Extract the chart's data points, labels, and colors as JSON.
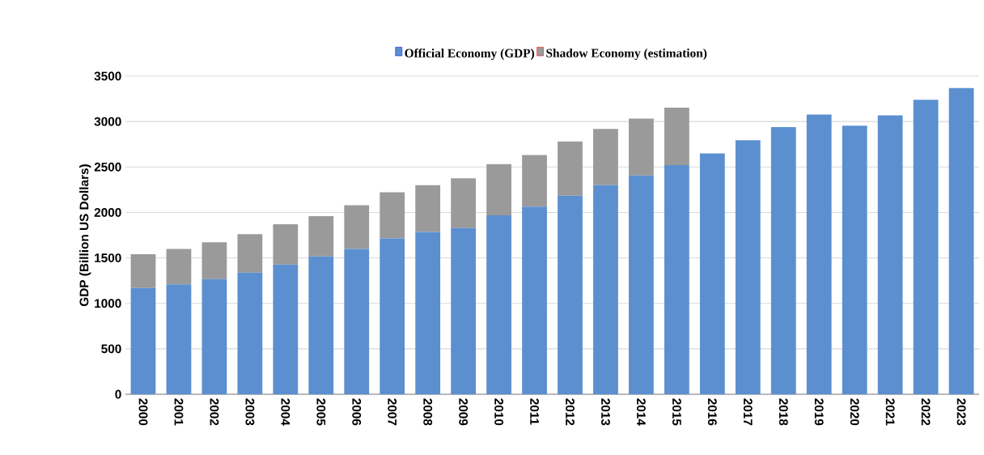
{
  "chart_data": {
    "type": "bar",
    "stacked": true,
    "ylabel": "GDP (Billion US Dollars)",
    "categories": [
      "2000",
      "2001",
      "2002",
      "2003",
      "2004",
      "2005",
      "2006",
      "2007",
      "2008",
      "2009",
      "2010",
      "2011",
      "2012",
      "2013",
      "2014",
      "2015",
      "2016",
      "2017",
      "2018",
      "2019",
      "2020",
      "2021",
      "2022",
      "2023"
    ],
    "series": [
      {
        "name": "Official Economy (GDP)",
        "color": "#5b8fd0",
        "values": [
          1170,
          1208,
          1267,
          1338,
          1427,
          1516,
          1599,
          1714,
          1785,
          1827,
          1969,
          2064,
          2185,
          2301,
          2407,
          2520,
          2650,
          2795,
          2940,
          3076,
          2955,
          3068,
          3239,
          3370
        ]
      },
      {
        "name": "Shadow Economy (estimation)",
        "color": "#9a9a9a",
        "values": [
          370,
          391,
          406,
          424,
          444,
          444,
          480,
          507,
          516,
          548,
          563,
          568,
          595,
          619,
          625,
          633,
          null,
          null,
          null,
          null,
          null,
          null,
          null,
          null
        ]
      }
    ],
    "ylim": [
      0,
      3500
    ],
    "yticks": [
      0,
      500,
      1000,
      1500,
      2000,
      2500,
      3000,
      3500
    ],
    "grid": "y",
    "legend": "top"
  }
}
